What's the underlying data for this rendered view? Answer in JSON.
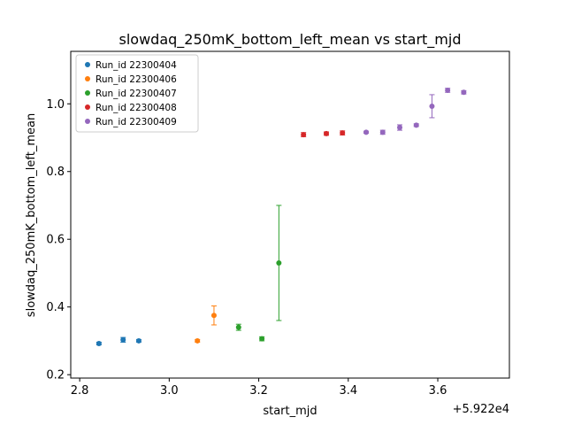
{
  "chart_data": {
    "type": "scatter",
    "title": "slowdaq_250mK_bottom_left_mean vs start_mjd",
    "xlabel": "start_mjd",
    "ylabel": "slowdaq_250mK_bottom_left_mean",
    "x_offset_label": "+5.922e4",
    "xlim": [
      2.78,
      3.76
    ],
    "ylim": [
      0.19,
      1.155
    ],
    "x_ticks": [
      2.8,
      3.0,
      3.2,
      3.4,
      3.6
    ],
    "x_tick_labels": [
      "2.8",
      "3.0",
      "3.2",
      "3.4",
      "3.6"
    ],
    "y_ticks": [
      0.2,
      0.4,
      0.6,
      0.8,
      1.0
    ],
    "y_tick_labels": [
      "0.2",
      "0.4",
      "0.6",
      "0.8",
      "1.0"
    ],
    "grid": false,
    "legend_position": "top-left",
    "series": [
      {
        "name": "Run_id 22300404",
        "color": "#1f77b4",
        "points": [
          {
            "x": 2.843,
            "y": 0.292,
            "err": 0.004
          },
          {
            "x": 2.897,
            "y": 0.303,
            "err": 0.007
          },
          {
            "x": 2.932,
            "y": 0.3,
            "err": 0.004
          }
        ]
      },
      {
        "name": "Run_id 22300406",
        "color": "#ff7f0e",
        "points": [
          {
            "x": 3.063,
            "y": 0.3,
            "err": 0.004
          },
          {
            "x": 3.1,
            "y": 0.375,
            "err": 0.028
          }
        ]
      },
      {
        "name": "Run_id 22300407",
        "color": "#2ca02c",
        "points": [
          {
            "x": 3.155,
            "y": 0.34,
            "err": 0.009
          },
          {
            "x": 3.207,
            "y": 0.306,
            "err": 0.006
          },
          {
            "x": 3.245,
            "y": 0.53,
            "err": 0.17
          }
        ]
      },
      {
        "name": "Run_id 22300408",
        "color": "#d62728",
        "points": [
          {
            "x": 3.3,
            "y": 0.909,
            "err": 0.006
          },
          {
            "x": 3.351,
            "y": 0.912,
            "err": 0.005
          },
          {
            "x": 3.387,
            "y": 0.914,
            "err": 0.006
          }
        ]
      },
      {
        "name": "Run_id 22300409",
        "color": "#9467bd",
        "points": [
          {
            "x": 3.44,
            "y": 0.916,
            "err": 0.003
          },
          {
            "x": 3.477,
            "y": 0.916,
            "err": 0.006
          },
          {
            "x": 3.515,
            "y": 0.93,
            "err": 0.008
          },
          {
            "x": 3.552,
            "y": 0.937,
            "err": 0.004
          },
          {
            "x": 3.587,
            "y": 0.993,
            "err": 0.034
          },
          {
            "x": 3.622,
            "y": 1.04,
            "err": 0.006
          },
          {
            "x": 3.658,
            "y": 1.034,
            "err": 0.005
          }
        ]
      }
    ]
  }
}
